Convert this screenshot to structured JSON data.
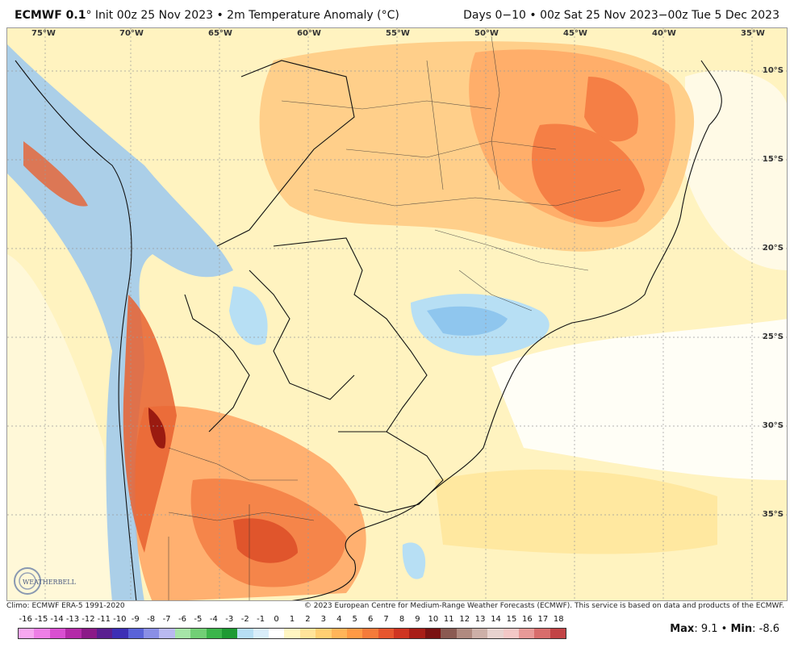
{
  "header": {
    "model": "ECMWF 0.1",
    "degree": "°",
    "init": " Init 00z 25 Nov 2023 • 2m Temperature Anomaly (°C)",
    "range": "Days 0−10 • 00z Sat 25 Nov 2023−00z Tue 5 Dec 2023"
  },
  "map": {
    "lon_labels": [
      "75°W",
      "70°W",
      "65°W",
      "60°W",
      "55°W",
      "50°W",
      "45°W",
      "40°W",
      "35°W"
    ],
    "lat_labels": [
      "10°S",
      "15°S",
      "20°S",
      "25°S",
      "30°S",
      "35°S"
    ]
  },
  "footer": {
    "climo": "Climo: ECMWF ERA-5 1991-2020",
    "copyright": "© 2023 European Centre for Medium-Range Weather Forecasts (ECMWF). This service is based on data and products of the ECMWF."
  },
  "colorbar": {
    "labels": [
      "-16",
      "-15",
      "-14",
      "-13",
      "-12",
      "-11",
      "-10",
      "-9",
      "-8",
      "-7",
      "-6",
      "-5",
      "-4",
      "-3",
      "-2",
      "-1",
      "0",
      "1",
      "2",
      "3",
      "4",
      "5",
      "6",
      "7",
      "8",
      "9",
      "10",
      "11",
      "12",
      "13",
      "14",
      "15",
      "16",
      "17",
      "18"
    ],
    "colors": [
      "#f7a8f0",
      "#ee7fe6",
      "#d94fd1",
      "#b42aa8",
      "#8b1a88",
      "#5a1f90",
      "#3d2fb5",
      "#5a63d8",
      "#8a8fe6",
      "#b9b9f0",
      "#a6e5a8",
      "#72cf76",
      "#3cb54b",
      "#1e9a33",
      "#b7dff4",
      "#d9eefa",
      "#ffffff",
      "#fff6c2",
      "#ffe49a",
      "#ffcf73",
      "#ffb55a",
      "#ff9a45",
      "#f57b3a",
      "#e6562e",
      "#cf3522",
      "#a81e17",
      "#7a1212",
      "#8a5a52",
      "#b08a80",
      "#cdb0a8",
      "#e8d3cf",
      "#f3c8c6",
      "#e89a98",
      "#d86d6c",
      "#c24446"
    ]
  },
  "stats": {
    "max_label": "Max",
    "max_value": ": 9.1 • ",
    "min_label": "Min",
    "min_value": ": -8.6"
  },
  "logo_text": "WEATHERBELL"
}
